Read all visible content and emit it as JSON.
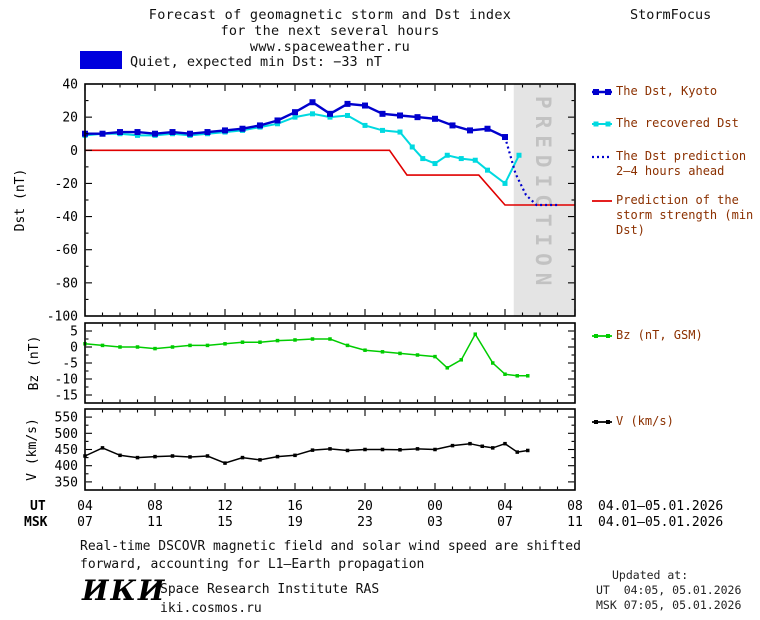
{
  "header": {
    "title_line1": "Forecast of geomagnetic storm and Dst index",
    "title_line2": "for the next several hours",
    "title_line3": "www.spaceweather.ru",
    "brand": "StormFocus"
  },
  "status": {
    "label": "Quiet, expected min Dst: −33 nT",
    "swatch_color": "#0000dd"
  },
  "legend": {
    "dst_kyoto": "The Dst, Kyoto",
    "recovered": "The recovered Dst",
    "prediction": "The Dst prediction 2–4 hours ahead",
    "storm": "Prediction of the storm strength (min Dst)",
    "bz": "Bz (nT, GSM)",
    "v": "V (km/s)"
  },
  "footer": {
    "line1": "Real-time DSCOVR magnetic field and solar wind speed are shifted",
    "line2": "forward, accounting for L1–Earth propagation"
  },
  "updated": {
    "label": "Updated at:",
    "ut": "UT  04:05, 05.01.2026",
    "msk": "MSK 07:05, 05.01.2026"
  },
  "logo": {
    "text": "ИКИ",
    "org": "Space Research Institute RAS",
    "site": "iki.cosmos.ru"
  },
  "colors": {
    "legend_text": "#8b3000",
    "axis_text": "#000000"
  },
  "chart_data": {
    "type": "line",
    "title": "Forecast of geomagnetic storm and Dst index for the next several hours",
    "subtitle": "www.spaceweather.ru",
    "grid": false,
    "legend_position": "right",
    "colors": {
      "band": "#e4e4e4",
      "band_label": "#c2c2c2"
    },
    "x_axis": {
      "range": [
        4,
        32
      ],
      "major_ticks": [
        4,
        8,
        12,
        16,
        20,
        24,
        28,
        32
      ],
      "ut_labels": [
        "04",
        "08",
        "12",
        "16",
        "20",
        "00",
        "04",
        "08"
      ],
      "msk_labels": [
        "07",
        "11",
        "15",
        "19",
        "23",
        "03",
        "07",
        "11"
      ],
      "ut_row_label": "UT",
      "msk_row_label": "MSK",
      "date_range": "04.01–05.01.2026"
    },
    "panels": {
      "dst": {
        "ylabel": "Dst (nT)",
        "ylim": [
          -100,
          40
        ],
        "yticks": [
          40,
          20,
          0,
          -20,
          -40,
          -60,
          -80,
          -100
        ],
        "y_minor_step": 10,
        "band": {
          "x_start": 28.5,
          "x_end": 32,
          "label": "PREDICTION"
        },
        "series": [
          "storm_prediction",
          "dst_recovered",
          "dst_kyoto",
          "dst_prediction"
        ]
      },
      "bz": {
        "ylabel": "Bz (nT)",
        "ylim": [
          -17.5,
          7.5
        ],
        "yticks": [
          5,
          0,
          -5,
          -10,
          -15
        ],
        "y_minor_step": 2.5,
        "series": [
          "bz"
        ]
      },
      "v": {
        "ylabel": "V (km/s)",
        "ylim": [
          325,
          575
        ],
        "yticks": [
          550,
          500,
          450,
          400,
          350
        ],
        "y_minor_step": 25,
        "series": [
          "v"
        ]
      }
    },
    "series": {
      "dst_kyoto": {
        "name": "The Dst, Kyoto",
        "color": "#0000cd",
        "line_width": 2.4,
        "marker_size": 6,
        "x": [
          4,
          5,
          6,
          7,
          8,
          9,
          10,
          11,
          12,
          13,
          14,
          15,
          16,
          17,
          18,
          19,
          20,
          21,
          22,
          23,
          24,
          25,
          26,
          27,
          28
        ],
        "y": [
          10,
          10,
          11,
          11,
          10,
          11,
          10,
          11,
          12,
          13,
          15,
          18,
          23,
          29,
          22,
          28,
          27,
          22,
          21,
          20,
          19,
          15,
          12,
          13,
          8
        ]
      },
      "dst_recovered": {
        "name": "The recovered Dst",
        "color": "#00d9e0",
        "line_width": 2,
        "marker_size": 5,
        "x": [
          4,
          5,
          6,
          7,
          8,
          9,
          10,
          11,
          12,
          13,
          14,
          15,
          16,
          17,
          18,
          19,
          20,
          21,
          22,
          22.7,
          23.3,
          24,
          24.7,
          25.5,
          26.3,
          27,
          28,
          28.8
        ],
        "y": [
          9,
          10,
          10,
          9,
          9,
          10,
          9,
          10,
          11,
          12,
          14,
          16,
          20,
          22,
          20,
          21,
          15,
          12,
          11,
          2,
          -5,
          -8,
          -3,
          -5,
          -6,
          -12,
          -20,
          -3
        ]
      },
      "dst_prediction": {
        "name": "The Dst prediction 2–4 hours ahead",
        "color": "#0000cd",
        "line_width": 2.2,
        "dash": "2,3",
        "x": [
          28,
          28.6,
          29.2,
          29.8,
          30.5,
          31.1
        ],
        "y": [
          8,
          -14,
          -27,
          -33,
          -33,
          -33
        ]
      },
      "storm_prediction": {
        "name": "Prediction of the storm strength (min Dst)",
        "color": "#e00000",
        "line_width": 1.6,
        "x": [
          4,
          21.4,
          22.4,
          26.5,
          28,
          32
        ],
        "y": [
          0,
          0,
          -15,
          -15,
          -33,
          -33
        ]
      },
      "bz": {
        "name": "Bz (nT, GSM)",
        "color": "#00cc00",
        "line_width": 1.5,
        "marker_size": 3.5,
        "x": [
          4,
          5,
          6,
          7,
          8,
          9,
          10,
          11,
          12,
          13,
          14,
          15,
          16,
          17,
          18,
          19,
          20,
          21,
          22,
          23,
          24,
          24.7,
          25.5,
          26.3,
          27.3,
          28,
          28.7,
          29.3
        ],
        "y": [
          1,
          0.5,
          0,
          0,
          -0.5,
          0,
          0.5,
          0.5,
          1,
          1.5,
          1.5,
          2,
          2.2,
          2.5,
          2.5,
          0.5,
          -1,
          -1.5,
          -2,
          -2.5,
          -3,
          -6.5,
          -4,
          4,
          -5,
          -8.5,
          -9,
          -9
        ]
      },
      "v": {
        "name": "V (km/s)",
        "color": "#000000",
        "line_width": 1.5,
        "marker_size": 3.5,
        "x": [
          4,
          5,
          6,
          7,
          8,
          9,
          10,
          11,
          12,
          13,
          14,
          15,
          16,
          17,
          18,
          19,
          20,
          21,
          22,
          23,
          24,
          25,
          26,
          26.7,
          27.3,
          28,
          28.7,
          29.3
        ],
        "y": [
          430,
          455,
          432,
          425,
          428,
          430,
          427,
          430,
          408,
          425,
          418,
          428,
          432,
          448,
          452,
          447,
          450,
          450,
          449,
          452,
          450,
          462,
          468,
          460,
          455,
          468,
          442,
          447
        ]
      }
    }
  }
}
